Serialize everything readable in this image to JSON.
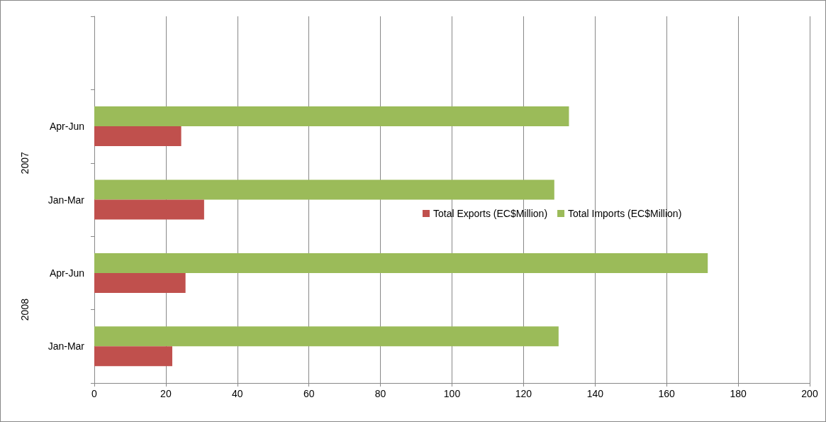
{
  "chart_data": {
    "type": "bar",
    "orientation": "horizontal",
    "categories": [
      null,
      "Apr-Jun",
      "Jan-Mar",
      "Apr-Jun",
      "Jan-Mar"
    ],
    "annotations": [
      "2007",
      "2008"
    ],
    "series": [
      {
        "name": "Total Exports (EC$Million)",
        "color": "#c0504d",
        "values": [
          null,
          24.3,
          30.7,
          25.5,
          21.8
        ]
      },
      {
        "name": "Total Imports (EC$Million)",
        "color": "#9bbb59",
        "values": [
          null,
          132.7,
          128.6,
          171.5,
          129.8
        ]
      }
    ],
    "xlim": [
      0,
      200
    ],
    "xticks": [
      0,
      20,
      40,
      60,
      80,
      100,
      120,
      140,
      160,
      180,
      200
    ],
    "grid": "x",
    "legend": "right"
  }
}
